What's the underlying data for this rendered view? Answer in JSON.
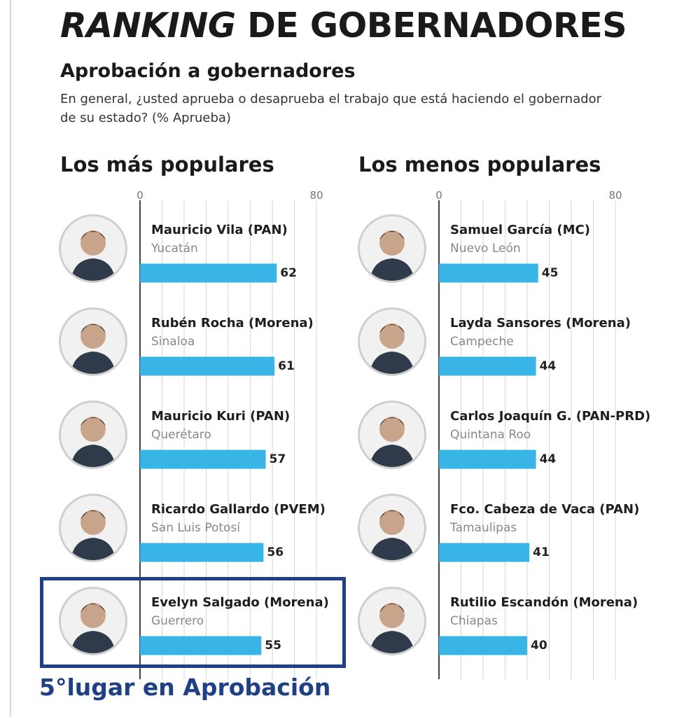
{
  "title_italic": "RANKING",
  "title_rest": " DE GOBERNADORES",
  "subtitle": "Aprobación a gobernadores",
  "question": "En general, ¿usted aprueba o desaprueba el trabajo que está haciendo el gobernador de su estado? (% Aprueba)",
  "caption": "5°lugar en Aprobación",
  "colors": {
    "bar": "#39b4e6",
    "highlight": "#1f3f86",
    "grid": "#d4d4d4",
    "axis": "#444444"
  },
  "chart_data": [
    {
      "type": "bar",
      "title": "Los más populares",
      "axis_ticks": [
        "0",
        "80"
      ],
      "xlim": [
        0,
        80
      ],
      "categories": [
        "Mauricio Vila (PAN)",
        "Rubén Rocha (Morena)",
        "Mauricio Kuri (PAN)",
        "Ricardo Gallardo (PVEM)",
        "Evelyn Salgado (Morena)"
      ],
      "states": [
        "Yucatán",
        "Sinaloa",
        "Querétaro",
        "San Luis Potosí",
        "Guerrero"
      ],
      "values": [
        62,
        61,
        57,
        56,
        55
      ],
      "labels": [
        "62",
        "61",
        "57",
        "56",
        "55"
      ],
      "avatars": [
        "portrait-icon",
        "portrait-icon",
        "portrait-icon",
        "portrait-icon",
        "portrait-icon"
      ]
    },
    {
      "type": "bar",
      "title": "Los menos populares",
      "axis_ticks": [
        "0",
        "80"
      ],
      "xlim": [
        0,
        80
      ],
      "categories": [
        "Samuel García (MC)",
        "Layda Sansores (Morena)",
        "Carlos Joaquín G. (PAN-PRD)",
        "Fco. Cabeza de Vaca (PAN)",
        "Rutilio Escandón (Morena)"
      ],
      "states": [
        "Nuevo León",
        "Campeche",
        "Quintana Roo",
        "Tamaulipas",
        "Chiapas"
      ],
      "values": [
        45,
        44,
        44,
        41,
        40
      ],
      "labels": [
        "45",
        "44",
        "44",
        "41",
        "40"
      ],
      "avatars": [
        "portrait-icon",
        "portrait-icon",
        "portrait-icon",
        "portrait-icon",
        "portrait-icon"
      ]
    }
  ]
}
